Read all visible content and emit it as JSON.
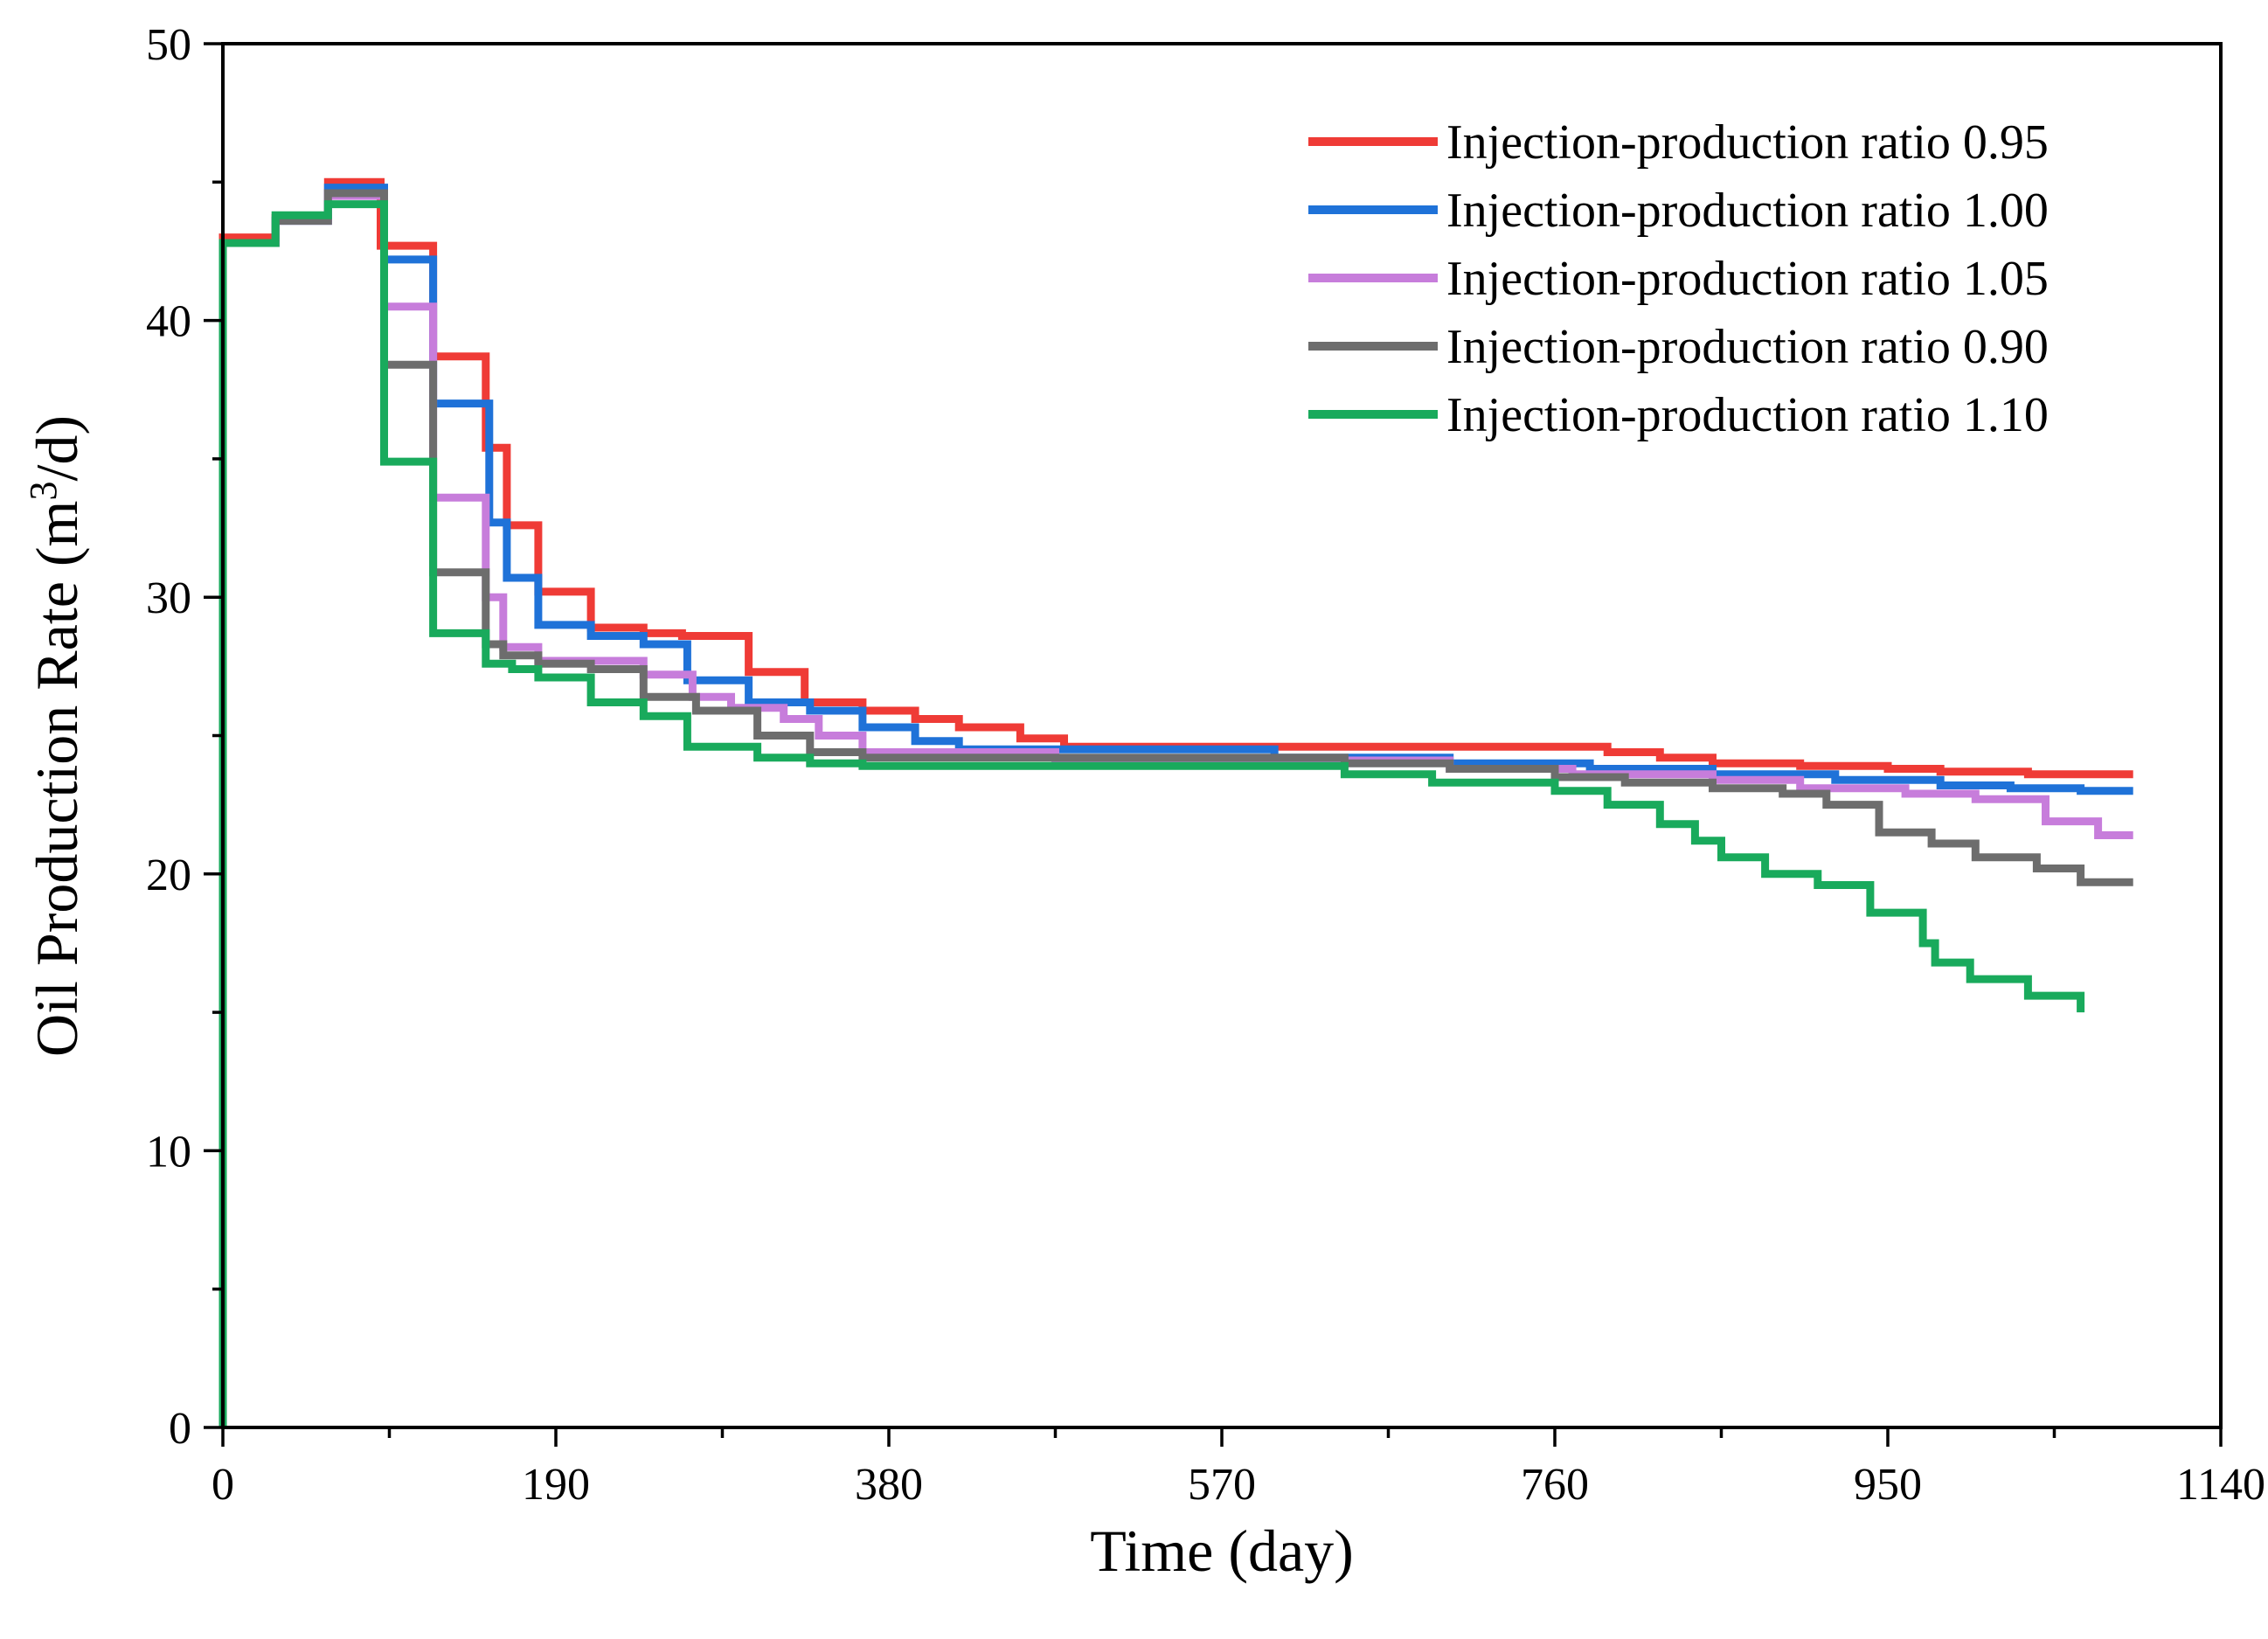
{
  "chart_data": {
    "type": "line",
    "title": "",
    "xlabel": "Time (day)",
    "ylabel_main": "Oil Production Rate (m",
    "ylabel_sup": "3",
    "ylabel_tail": "/d)",
    "xlim": [
      0,
      1140
    ],
    "ylim": [
      0,
      50
    ],
    "xticks": [
      0,
      190,
      380,
      570,
      760,
      950,
      1140
    ],
    "yticks": [
      0,
      10,
      20,
      30,
      40,
      50
    ],
    "grid": false,
    "legend_position": "top-right",
    "series": [
      {
        "name": "Injection-production ratio 0.95",
        "color": "#ef3b36",
        "points": [
          [
            0,
            0
          ],
          [
            0,
            43
          ],
          [
            30,
            43
          ],
          [
            30,
            43.7
          ],
          [
            60,
            43.7
          ],
          [
            60,
            45
          ],
          [
            90,
            45
          ],
          [
            90,
            42.7
          ],
          [
            120,
            42.7
          ],
          [
            120,
            38.7
          ],
          [
            150,
            38.7
          ],
          [
            150,
            35.4
          ],
          [
            162,
            35.4
          ],
          [
            162,
            32.6
          ],
          [
            180,
            32.6
          ],
          [
            180,
            30.2
          ],
          [
            210,
            30.2
          ],
          [
            210,
            28.9
          ],
          [
            240,
            28.9
          ],
          [
            240,
            28.7
          ],
          [
            262,
            28.7
          ],
          [
            262,
            28.6
          ],
          [
            300,
            28.6
          ],
          [
            300,
            27.3
          ],
          [
            332,
            27.3
          ],
          [
            332,
            26.2
          ],
          [
            365,
            26.2
          ],
          [
            365,
            25.9
          ],
          [
            395,
            25.9
          ],
          [
            395,
            25.6
          ],
          [
            420,
            25.6
          ],
          [
            420,
            25.3
          ],
          [
            455,
            25.3
          ],
          [
            455,
            24.9
          ],
          [
            480,
            24.9
          ],
          [
            480,
            24.6
          ],
          [
            760,
            24.6
          ],
          [
            790,
            24.6
          ],
          [
            790,
            24.4
          ],
          [
            820,
            24.4
          ],
          [
            820,
            24.2
          ],
          [
            850,
            24.2
          ],
          [
            850,
            24.0
          ],
          [
            900,
            24.0
          ],
          [
            900,
            23.9
          ],
          [
            950,
            23.9
          ],
          [
            950,
            23.8
          ],
          [
            980,
            23.8
          ],
          [
            980,
            23.7
          ],
          [
            1030,
            23.7
          ],
          [
            1030,
            23.6
          ],
          [
            1090,
            23.6
          ]
        ]
      },
      {
        "name": "Injection-production ratio 1.00",
        "color": "#1f72d8",
        "points": [
          [
            0,
            0
          ],
          [
            0,
            42.8
          ],
          [
            30,
            42.8
          ],
          [
            30,
            43.6
          ],
          [
            60,
            43.6
          ],
          [
            60,
            44.8
          ],
          [
            92,
            44.8
          ],
          [
            92,
            42.2
          ],
          [
            120,
            42.2
          ],
          [
            120,
            37.0
          ],
          [
            152,
            37.0
          ],
          [
            152,
            32.7
          ],
          [
            162,
            32.7
          ],
          [
            162,
            30.7
          ],
          [
            180,
            30.7
          ],
          [
            180,
            29.0
          ],
          [
            210,
            29.0
          ],
          [
            210,
            28.6
          ],
          [
            240,
            28.6
          ],
          [
            240,
            28.3
          ],
          [
            265,
            28.3
          ],
          [
            265,
            27.0
          ],
          [
            300,
            27.0
          ],
          [
            300,
            26.2
          ],
          [
            335,
            26.2
          ],
          [
            335,
            25.9
          ],
          [
            365,
            25.9
          ],
          [
            365,
            25.3
          ],
          [
            395,
            25.3
          ],
          [
            395,
            24.8
          ],
          [
            420,
            24.8
          ],
          [
            420,
            24.5
          ],
          [
            600,
            24.5
          ],
          [
            600,
            24.2
          ],
          [
            700,
            24.2
          ],
          [
            700,
            24.0
          ],
          [
            780,
            24.0
          ],
          [
            780,
            23.8
          ],
          [
            850,
            23.8
          ],
          [
            850,
            23.6
          ],
          [
            920,
            23.6
          ],
          [
            920,
            23.4
          ],
          [
            980,
            23.4
          ],
          [
            980,
            23.2
          ],
          [
            1020,
            23.2
          ],
          [
            1020,
            23.1
          ],
          [
            1060,
            23.1
          ],
          [
            1060,
            23.0
          ],
          [
            1090,
            23.0
          ]
        ]
      },
      {
        "name": "Injection-production ratio 1.05",
        "color": "#c77ddb",
        "points": [
          [
            0,
            0
          ],
          [
            0,
            42.8
          ],
          [
            30,
            42.8
          ],
          [
            30,
            43.6
          ],
          [
            60,
            43.6
          ],
          [
            60,
            44.5
          ],
          [
            92,
            44.5
          ],
          [
            92,
            40.5
          ],
          [
            120,
            40.5
          ],
          [
            120,
            33.6
          ],
          [
            150,
            33.6
          ],
          [
            150,
            30.0
          ],
          [
            160,
            30.0
          ],
          [
            160,
            28.2
          ],
          [
            180,
            28.2
          ],
          [
            180,
            27.7
          ],
          [
            240,
            27.7
          ],
          [
            240,
            27.2
          ],
          [
            268,
            27.2
          ],
          [
            268,
            26.4
          ],
          [
            290,
            26.4
          ],
          [
            290,
            26.0
          ],
          [
            320,
            26.0
          ],
          [
            320,
            25.6
          ],
          [
            340,
            25.6
          ],
          [
            340,
            25.0
          ],
          [
            365,
            25.0
          ],
          [
            365,
            24.4
          ],
          [
            475,
            24.4
          ],
          [
            475,
            24.1
          ],
          [
            700,
            24.1
          ],
          [
            700,
            23.8
          ],
          [
            770,
            23.8
          ],
          [
            770,
            23.6
          ],
          [
            850,
            23.6
          ],
          [
            850,
            23.4
          ],
          [
            900,
            23.4
          ],
          [
            900,
            23.1
          ],
          [
            960,
            23.1
          ],
          [
            960,
            22.9
          ],
          [
            1000,
            22.9
          ],
          [
            1000,
            22.7
          ],
          [
            1040,
            22.7
          ],
          [
            1040,
            21.9
          ],
          [
            1070,
            21.9
          ],
          [
            1070,
            21.4
          ],
          [
            1090,
            21.4
          ]
        ]
      },
      {
        "name": "Injection-production ratio 0.90",
        "color": "#6d6d6d",
        "points": [
          [
            0,
            0
          ],
          [
            0,
            42.8
          ],
          [
            30,
            42.8
          ],
          [
            30,
            43.6
          ],
          [
            60,
            43.6
          ],
          [
            60,
            44.6
          ],
          [
            92,
            44.6
          ],
          [
            92,
            38.4
          ],
          [
            120,
            38.4
          ],
          [
            120,
            30.9
          ],
          [
            150,
            30.9
          ],
          [
            150,
            28.3
          ],
          [
            160,
            28.3
          ],
          [
            160,
            27.9
          ],
          [
            180,
            27.9
          ],
          [
            180,
            27.6
          ],
          [
            210,
            27.6
          ],
          [
            210,
            27.4
          ],
          [
            240,
            27.4
          ],
          [
            240,
            26.4
          ],
          [
            270,
            26.4
          ],
          [
            270,
            25.9
          ],
          [
            305,
            25.9
          ],
          [
            305,
            25.0
          ],
          [
            335,
            25.0
          ],
          [
            335,
            24.4
          ],
          [
            365,
            24.4
          ],
          [
            365,
            24.2
          ],
          [
            640,
            24.2
          ],
          [
            640,
            24.0
          ],
          [
            700,
            24.0
          ],
          [
            700,
            23.8
          ],
          [
            760,
            23.8
          ],
          [
            760,
            23.5
          ],
          [
            800,
            23.5
          ],
          [
            800,
            23.3
          ],
          [
            850,
            23.3
          ],
          [
            850,
            23.1
          ],
          [
            890,
            23.1
          ],
          [
            890,
            22.9
          ],
          [
            915,
            22.9
          ],
          [
            915,
            22.5
          ],
          [
            945,
            22.5
          ],
          [
            945,
            21.5
          ],
          [
            975,
            21.5
          ],
          [
            975,
            21.1
          ],
          [
            1000,
            21.1
          ],
          [
            1000,
            20.6
          ],
          [
            1035,
            20.6
          ],
          [
            1035,
            20.2
          ],
          [
            1060,
            20.2
          ],
          [
            1060,
            19.7
          ],
          [
            1090,
            19.7
          ]
        ]
      },
      {
        "name": "Injection-production ratio 1.10",
        "color": "#19aa5c",
        "points": [
          [
            0,
            0
          ],
          [
            0,
            42.8
          ],
          [
            30,
            42.8
          ],
          [
            30,
            43.8
          ],
          [
            60,
            43.8
          ],
          [
            60,
            44.2
          ],
          [
            92,
            44.2
          ],
          [
            92,
            34.9
          ],
          [
            120,
            34.9
          ],
          [
            120,
            28.7
          ],
          [
            150,
            28.7
          ],
          [
            150,
            27.6
          ],
          [
            165,
            27.6
          ],
          [
            165,
            27.4
          ],
          [
            180,
            27.4
          ],
          [
            180,
            27.1
          ],
          [
            210,
            27.1
          ],
          [
            210,
            26.2
          ],
          [
            240,
            26.2
          ],
          [
            240,
            25.7
          ],
          [
            265,
            25.7
          ],
          [
            265,
            24.6
          ],
          [
            305,
            24.6
          ],
          [
            305,
            24.2
          ],
          [
            335,
            24.2
          ],
          [
            335,
            24.0
          ],
          [
            365,
            24.0
          ],
          [
            365,
            23.9
          ],
          [
            640,
            23.9
          ],
          [
            640,
            23.6
          ],
          [
            690,
            23.6
          ],
          [
            690,
            23.3
          ],
          [
            760,
            23.3
          ],
          [
            760,
            23.0
          ],
          [
            790,
            23.0
          ],
          [
            790,
            22.5
          ],
          [
            820,
            22.5
          ],
          [
            820,
            21.8
          ],
          [
            840,
            21.8
          ],
          [
            840,
            21.2
          ],
          [
            855,
            21.2
          ],
          [
            855,
            20.6
          ],
          [
            880,
            20.6
          ],
          [
            880,
            20.0
          ],
          [
            910,
            20.0
          ],
          [
            910,
            19.6
          ],
          [
            940,
            19.6
          ],
          [
            940,
            18.6
          ],
          [
            970,
            18.6
          ],
          [
            970,
            17.5
          ],
          [
            977,
            17.5
          ],
          [
            977,
            16.8
          ],
          [
            997,
            16.8
          ],
          [
            997,
            16.2
          ],
          [
            1030,
            16.2
          ],
          [
            1030,
            15.6
          ],
          [
            1060,
            15.6
          ],
          [
            1060,
            15.0
          ]
        ]
      }
    ]
  }
}
